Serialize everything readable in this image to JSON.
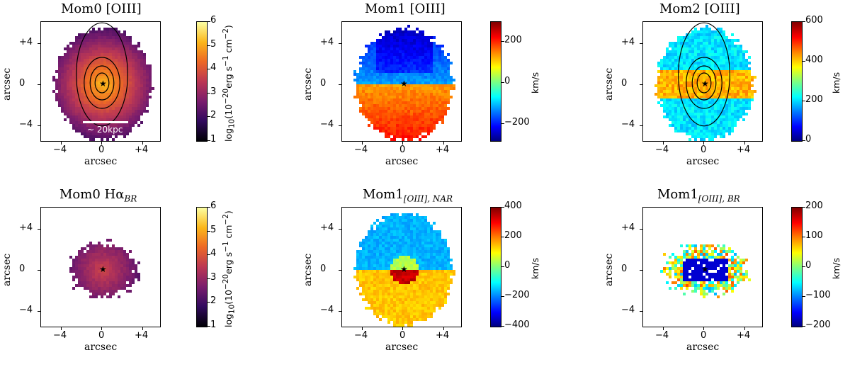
{
  "panels": [
    {
      "id": "mom0-oiii",
      "title": "Mom0 [OIII]",
      "title_sub": "",
      "colormap": "inferno",
      "map_shape": "full",
      "cbar_ticks": [
        "6",
        "5",
        "4",
        "3",
        "2",
        "1"
      ],
      "cbar_unit_html": "log<sub>10</sub>(10<sup>−20</sup>erg s<sup>−1</sup> cm<sup>−2</sup>)",
      "scale_bar_label": "~ 20kpc",
      "contours": true
    },
    {
      "id": "mom1-oiii",
      "title": "Mom1 [OIII]",
      "title_sub": "",
      "colormap": "jet",
      "map_shape": "full",
      "cbar_ticks": [
        "200",
        "0",
        "−200"
      ],
      "cbar_unit": "km/s",
      "contours": false
    },
    {
      "id": "mom2-oiii",
      "title": "Mom2 [OIII]",
      "title_sub": "",
      "colormap": "jet",
      "map_shape": "full",
      "cbar_ticks": [
        "600",
        "400",
        "200",
        "0"
      ],
      "cbar_unit": "km/s",
      "contours": true
    },
    {
      "id": "mom0-ha-br",
      "title": "Mom0 Hα",
      "title_sub": "BR",
      "colormap": "inferno",
      "map_shape": "compact",
      "cbar_ticks": [
        "6",
        "5",
        "4",
        "3",
        "2",
        "1"
      ],
      "cbar_unit_html": "log<sub>10</sub>(10<sup>−20</sup>erg s<sup>−1</sup> cm<sup>−2</sup>)",
      "contours": false
    },
    {
      "id": "mom1-oiii-nar",
      "title": "Mom1",
      "title_sub": "[OIII], NAR",
      "colormap": "jet",
      "map_shape": "full",
      "cbar_ticks": [
        "400",
        "200",
        "0",
        "−200",
        "−400"
      ],
      "cbar_unit": "km/s",
      "contours": false
    },
    {
      "id": "mom1-oiii-br",
      "title": "Mom1",
      "title_sub": "[OIII], BR",
      "colormap": "jet",
      "map_shape": "sparse",
      "cbar_ticks": [
        "200",
        "100",
        "0",
        "−100",
        "−200"
      ],
      "cbar_unit": "km/s",
      "contours": false
    }
  ],
  "axes": {
    "ylabel": "arcsec",
    "xlabel": "arcsec",
    "yticks": [
      "+4",
      "0",
      "−4"
    ],
    "xticks": [
      "−4",
      "0",
      "+4"
    ]
  },
  "colors": {
    "inferno": [
      "#000004",
      "#320a5e",
      "#781c6d",
      "#bb3754",
      "#ed6925",
      "#fbb61a",
      "#fcffa4"
    ],
    "jet": [
      "#00007f",
      "#0000ff",
      "#007fff",
      "#00ffff",
      "#7fff7f",
      "#ffff00",
      "#ff7f00",
      "#ff0000",
      "#7f0000"
    ]
  }
}
